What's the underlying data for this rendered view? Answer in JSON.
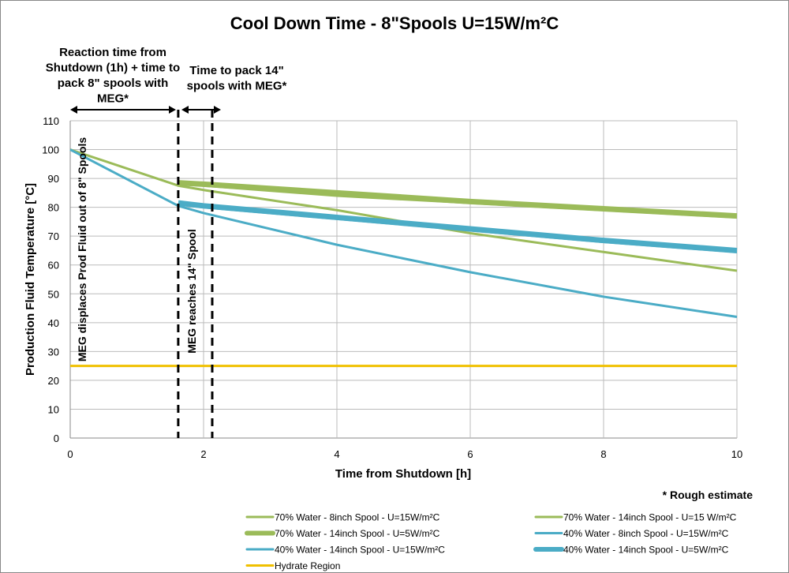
{
  "chart_data": {
    "type": "line",
    "title": "Cool Down Time - 8\"Spools U=15W/m²C",
    "xlabel": "Time from Shutdown [h]",
    "ylabel": "Production Fluid Temperature [°C]",
    "xlim": [
      0,
      10
    ],
    "ylim": [
      0,
      110
    ],
    "xticks": [
      0,
      2,
      4,
      6,
      8,
      10
    ],
    "yticks": [
      0,
      10,
      20,
      30,
      40,
      50,
      60,
      70,
      80,
      90,
      100,
      110
    ],
    "grid": true,
    "legend_position": "bottom",
    "series": [
      {
        "name": "70% Water - 8inch Spool - U=15W/m²C",
        "color": "#9bbb59",
        "weight": "thin",
        "points": [
          [
            0,
            100
          ],
          [
            1.62,
            87.5
          ],
          [
            2,
            86
          ],
          [
            4,
            79
          ],
          [
            6,
            71
          ],
          [
            8,
            64.5
          ],
          [
            10,
            58
          ]
        ]
      },
      {
        "name": "70% Water - 14inch Spool - U=15 W/m²C",
        "color": "#9bbb59",
        "weight": "thin",
        "points": [
          [
            1.62,
            88
          ],
          [
            2,
            87.5
          ],
          [
            4,
            84
          ],
          [
            6,
            81.5
          ],
          [
            8,
            79
          ],
          [
            10,
            76.5
          ]
        ]
      },
      {
        "name": "70% Water - 14inch Spool - U=5W/m²C",
        "color": "#9bbb59",
        "weight": "thick",
        "points": [
          [
            1.62,
            88.5
          ],
          [
            2,
            88
          ],
          [
            4,
            85
          ],
          [
            6,
            82
          ],
          [
            8,
            79.5
          ],
          [
            10,
            77
          ]
        ]
      },
      {
        "name": "40% Water - 8inch Spool - U=15W/m²C",
        "color": "#4bacc6",
        "weight": "thin",
        "points": [
          [
            0,
            100
          ],
          [
            1.62,
            80.5
          ],
          [
            2,
            78
          ],
          [
            4,
            67
          ],
          [
            6,
            57.5
          ],
          [
            8,
            49
          ],
          [
            10,
            42
          ]
        ]
      },
      {
        "name": "40% Water - 14inch Spool - U=15W/m²C",
        "color": "#4bacc6",
        "weight": "thin",
        "points": [
          [
            1.62,
            81
          ],
          [
            2,
            80
          ],
          [
            4,
            76
          ],
          [
            6,
            72
          ],
          [
            8,
            68
          ],
          [
            10,
            64.5
          ]
        ]
      },
      {
        "name": "40% Water - 14inch Spool - U=5W/m²C",
        "color": "#4bacc6",
        "weight": "thick",
        "points": [
          [
            1.62,
            81.5
          ],
          [
            2,
            80.5
          ],
          [
            4,
            76.5
          ],
          [
            6,
            72.5
          ],
          [
            8,
            68.5
          ],
          [
            10,
            65
          ]
        ]
      },
      {
        "name": "Hydrate Region",
        "color": "#f0c000",
        "weight": "thin",
        "points": [
          [
            0,
            25
          ],
          [
            10,
            25
          ]
        ]
      }
    ],
    "vlines": [
      1.62,
      2.13
    ],
    "annotations": {
      "reaction": [
        "Reaction time from",
        "Shutdown (1h) + time to",
        "pack 8\" spools with",
        "MEG*"
      ],
      "pack14": [
        "Time to pack 14\"",
        "spools with MEG*"
      ],
      "meg_displaces": "MEG displaces Prod Fluid out of  8\" Spools",
      "meg_reaches": "MEG reaches 14\" Spool",
      "note": "* Rough estimate"
    }
  }
}
